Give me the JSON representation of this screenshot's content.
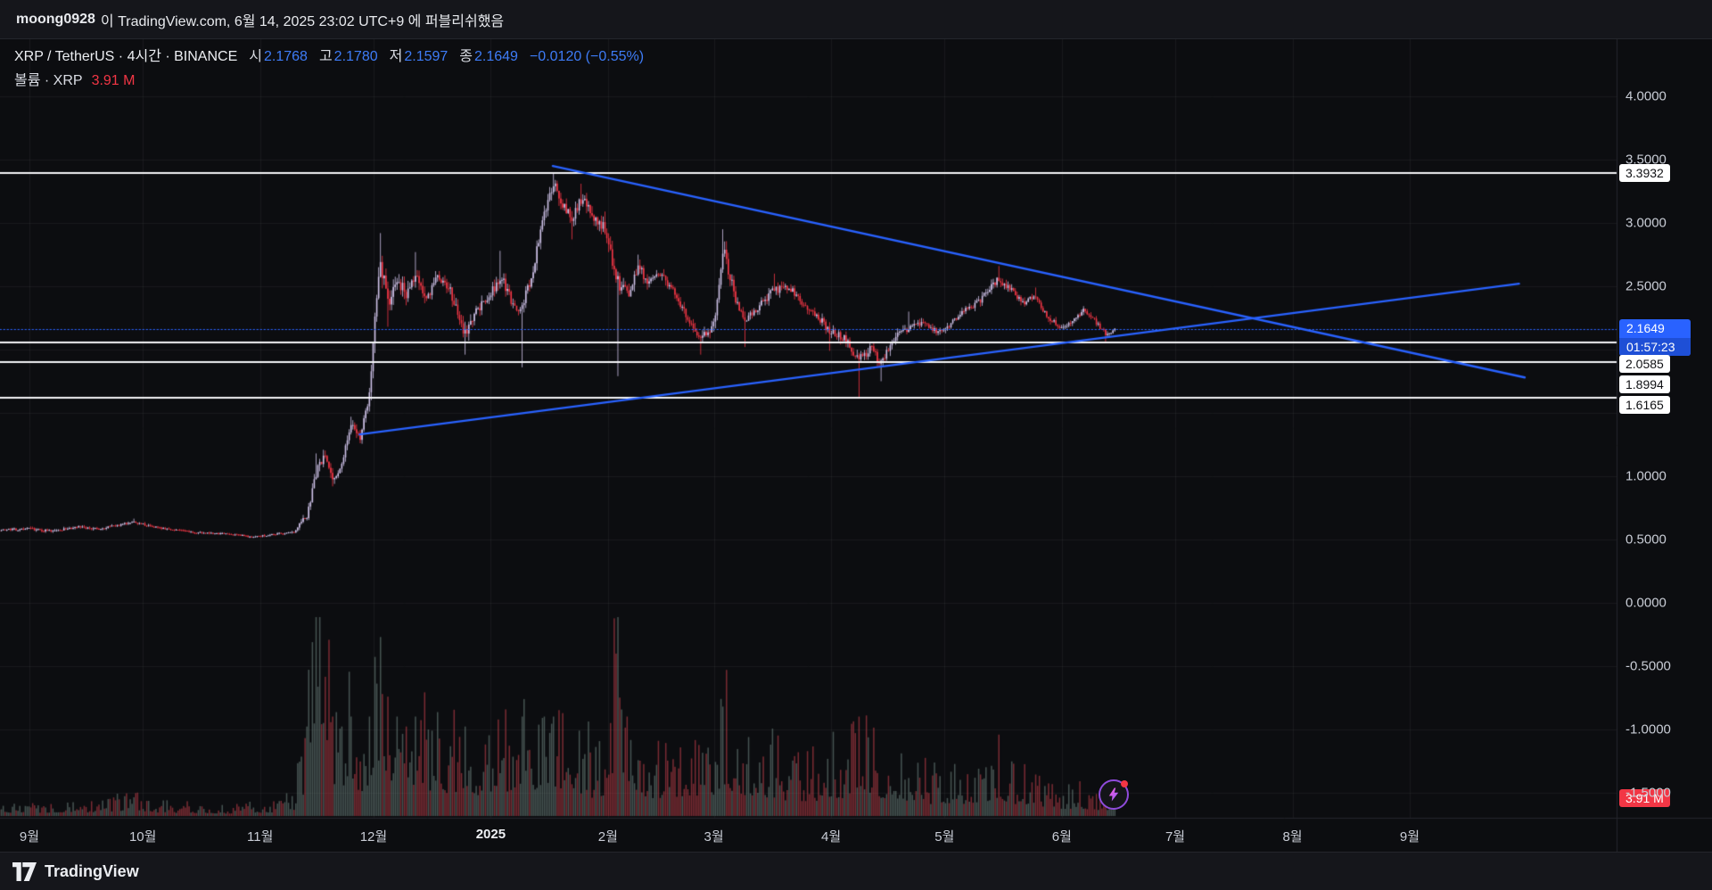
{
  "header": {
    "publisher": "moong0928",
    "publish_text": "이 TradingView.com, 6월 14, 2025 23:02 UTC+9 에 퍼블리쉬했음"
  },
  "legend": {
    "title": "XRP / TetherUS · 4시간 · BINANCE",
    "ohlc": [
      {
        "k": "시",
        "v": "2.1768"
      },
      {
        "k": "고",
        "v": "2.1780"
      },
      {
        "k": "저",
        "v": "2.1597"
      },
      {
        "k": "종",
        "v": "2.1649"
      }
    ],
    "change": "−0.0120 (−0.55%)",
    "volume_label": "볼륨 · XRP",
    "volume_value": "3.91 M"
  },
  "footer": {
    "brand": "TradingView"
  },
  "icons": {
    "marker": "lightning-bolt",
    "logo": "tradingview-logo"
  },
  "colors": {
    "accent_blue": "#2962ff",
    "value_blue": "#3e7cf7",
    "down_red": "#f23645",
    "candle_up": "#cfc2e9",
    "candle_down": "#f23645",
    "vol_up": "rgba(110,132,126,0.6)",
    "vol_down": "rgba(214,70,80,0.55)",
    "level_white": "#f5f6f8",
    "grid": "rgba(250,250,255,0.05)",
    "axis_border": "#24262c"
  },
  "chart_data": {
    "type": "candlestick",
    "title": "XRP / TetherUS 4h BINANCE",
    "interval": "4시간",
    "y_axis": {
      "ticks": [
        {
          "label": "4.0000",
          "value": 4.0
        },
        {
          "label": "3.5000",
          "value": 3.5
        },
        {
          "label": "3.0000",
          "value": 3.0
        },
        {
          "label": "2.5000",
          "value": 2.5
        },
        {
          "label": "1.0000",
          "value": 1.0
        },
        {
          "label": "0.5000",
          "value": 0.5
        },
        {
          "label": "0.0000",
          "value": 0.0
        },
        {
          "label": "-0.5000",
          "value": -0.5
        },
        {
          "label": "-1.0000",
          "value": -1.0
        },
        {
          "label": "-1.5000",
          "value": -1.5
        }
      ]
    },
    "x_axis": {
      "months": [
        {
          "label": "9월",
          "d": 0
        },
        {
          "label": "10월",
          "d": 30
        },
        {
          "label": "11월",
          "d": 61
        },
        {
          "label": "12월",
          "d": 91
        },
        {
          "label": "2025",
          "d": 122,
          "year": true
        },
        {
          "label": "2월",
          "d": 153
        },
        {
          "label": "3월",
          "d": 181
        },
        {
          "label": "4월",
          "d": 212
        },
        {
          "label": "5월",
          "d": 242
        },
        {
          "label": "6월",
          "d": 273
        },
        {
          "label": "7월",
          "d": 303
        },
        {
          "label": "8월",
          "d": 334
        },
        {
          "label": "9월",
          "d": 365
        }
      ]
    },
    "price_levels": [
      {
        "label": "3.3932",
        "value": 3.3932
      },
      {
        "label": "2.0585",
        "value": 2.0585
      },
      {
        "label": "1.8994",
        "value": 1.8994
      },
      {
        "label": "1.6165",
        "value": 1.6165
      }
    ],
    "current_price": {
      "label": "2.1649",
      "value": 2.1649,
      "countdown": "01:57:23"
    },
    "volume_badge": "3.91 M",
    "ohlc_now": {
      "open": 2.1768,
      "high": 2.178,
      "low": 2.1597,
      "close": 2.1649,
      "change": -0.012,
      "change_pct": -0.55
    },
    "trendlines": [
      {
        "from": {
          "m": 4.55,
          "price": 3.45
        },
        "to": {
          "m": 13.0,
          "price": 1.78
        }
      },
      {
        "from": {
          "m": 2.87,
          "price": 1.33
        },
        "to": {
          "m": 12.95,
          "price": 2.52
        }
      }
    ],
    "keypoints": [
      {
        "m": -0.26,
        "c": 0.575,
        "a": 0.015,
        "v": 0.05
      },
      {
        "m": 0.0,
        "c": 0.585,
        "a": 0.015,
        "v": 0.06
      },
      {
        "m": 0.2,
        "c": 0.565,
        "a": 0.015,
        "v": 0.05
      },
      {
        "m": 0.4,
        "c": 0.6,
        "a": 0.016,
        "v": 0.07
      },
      {
        "m": 0.6,
        "c": 0.58,
        "a": 0.015,
        "v": 0.05
      },
      {
        "m": 0.78,
        "c": 0.615,
        "a": 0.016,
        "v": 0.08
      },
      {
        "m": 0.9,
        "c": 0.645,
        "h": 0.665,
        "a": 0.016,
        "v": 0.1
      },
      {
        "m": 1.05,
        "c": 0.605,
        "a": 0.015,
        "v": 0.06
      },
      {
        "m": 1.25,
        "c": 0.58,
        "a": 0.013,
        "v": 0.05
      },
      {
        "m": 1.45,
        "c": 0.555,
        "a": 0.012,
        "v": 0.05
      },
      {
        "m": 1.7,
        "c": 0.545,
        "a": 0.011,
        "v": 0.04
      },
      {
        "m": 1.95,
        "c": 0.52,
        "a": 0.011,
        "v": 0.05
      },
      {
        "m": 2.15,
        "c": 0.545,
        "a": 0.012,
        "v": 0.06
      },
      {
        "m": 2.3,
        "c": 0.555,
        "a": 0.014,
        "v": 0.1
      },
      {
        "m": 2.42,
        "c": 0.7,
        "a": 0.05,
        "v": 0.45
      },
      {
        "m": 2.5,
        "c": 1.05,
        "h": 1.18,
        "a": 0.07,
        "v": 1.0
      },
      {
        "m": 2.57,
        "c": 1.15,
        "a": 0.065,
        "v": 0.7
      },
      {
        "m": 2.64,
        "c": 0.97,
        "l": 0.92,
        "a": 0.055,
        "v": 0.5
      },
      {
        "m": 2.72,
        "c": 1.12,
        "a": 0.055,
        "v": 0.45
      },
      {
        "m": 2.8,
        "c": 1.4,
        "h": 1.47,
        "a": 0.055,
        "v": 0.5
      },
      {
        "m": 2.88,
        "c": 1.3,
        "l": 1.26,
        "a": 0.05,
        "v": 0.4
      },
      {
        "m": 2.95,
        "c": 1.62,
        "a": 0.07,
        "v": 0.5
      },
      {
        "m": 3.0,
        "c": 2.18,
        "a": 0.1,
        "v": 0.8
      },
      {
        "m": 3.05,
        "c": 2.72,
        "h": 2.92,
        "a": 0.11,
        "v": 0.9
      },
      {
        "m": 3.12,
        "c": 2.33,
        "l": 2.18,
        "a": 0.09,
        "v": 0.6
      },
      {
        "m": 3.2,
        "c": 2.55,
        "a": 0.085,
        "v": 0.5
      },
      {
        "m": 3.28,
        "c": 2.43,
        "a": 0.08,
        "v": 0.45
      },
      {
        "m": 3.36,
        "c": 2.62,
        "h": 2.77,
        "a": 0.08,
        "v": 0.5
      },
      {
        "m": 3.45,
        "c": 2.38,
        "a": 0.075,
        "v": 0.4
      },
      {
        "m": 3.55,
        "c": 2.58,
        "a": 0.07,
        "v": 0.4
      },
      {
        "m": 3.66,
        "c": 2.46,
        "a": 0.065,
        "v": 0.35
      },
      {
        "m": 3.78,
        "c": 2.12,
        "l": 1.96,
        "a": 0.075,
        "v": 0.45
      },
      {
        "m": 3.9,
        "c": 2.32,
        "a": 0.065,
        "v": 0.35
      },
      {
        "m": 4.0,
        "c": 2.43,
        "a": 0.065,
        "v": 0.35
      },
      {
        "m": 4.1,
        "c": 2.58,
        "h": 2.78,
        "a": 0.075,
        "v": 0.4
      },
      {
        "m": 4.2,
        "c": 2.36,
        "a": 0.065,
        "v": 0.35
      },
      {
        "m": 4.28,
        "c": 2.31,
        "l": 1.86,
        "a": 0.085,
        "v": 0.5
      },
      {
        "m": 4.38,
        "c": 2.64,
        "a": 0.075,
        "v": 0.4
      },
      {
        "m": 4.47,
        "c": 3.08,
        "a": 0.085,
        "v": 0.5
      },
      {
        "m": 4.56,
        "c": 3.33,
        "h": 3.3932,
        "a": 0.08,
        "v": 0.5
      },
      {
        "m": 4.64,
        "c": 3.13,
        "a": 0.075,
        "v": 0.4
      },
      {
        "m": 4.72,
        "c": 3.03,
        "l": 2.87,
        "a": 0.07,
        "v": 0.35
      },
      {
        "m": 4.8,
        "c": 3.19,
        "h": 3.31,
        "a": 0.07,
        "v": 0.35
      },
      {
        "m": 4.9,
        "c": 3.06,
        "a": 0.07,
        "v": 0.3
      },
      {
        "m": 5.0,
        "c": 2.96,
        "h": 3.09,
        "a": 0.075,
        "v": 0.35
      },
      {
        "m": 5.12,
        "c": 2.52,
        "l": 1.79,
        "a": 0.11,
        "v": 1.0
      },
      {
        "m": 5.2,
        "c": 2.43,
        "a": 0.075,
        "v": 0.5
      },
      {
        "m": 5.29,
        "c": 2.66,
        "h": 2.75,
        "a": 0.065,
        "v": 0.4
      },
      {
        "m": 5.38,
        "c": 2.53,
        "a": 0.06,
        "v": 0.3
      },
      {
        "m": 5.48,
        "c": 2.61,
        "a": 0.055,
        "v": 0.3
      },
      {
        "m": 5.6,
        "c": 2.45,
        "a": 0.055,
        "v": 0.3
      },
      {
        "m": 5.72,
        "c": 2.26,
        "a": 0.055,
        "v": 0.3
      },
      {
        "m": 5.84,
        "c": 2.08,
        "l": 1.96,
        "a": 0.06,
        "v": 0.35
      },
      {
        "m": 5.95,
        "c": 2.19,
        "a": 0.06,
        "v": 0.3
      },
      {
        "m": 6.03,
        "c": 2.82,
        "h": 2.95,
        "a": 0.095,
        "v": 0.55
      },
      {
        "m": 6.12,
        "c": 2.46,
        "a": 0.08,
        "v": 0.4
      },
      {
        "m": 6.22,
        "c": 2.21,
        "l": 2.02,
        "a": 0.065,
        "v": 0.35
      },
      {
        "m": 6.35,
        "c": 2.36,
        "a": 0.055,
        "v": 0.3
      },
      {
        "m": 6.48,
        "c": 2.47,
        "h": 2.6,
        "a": 0.055,
        "v": 0.3
      },
      {
        "m": 6.6,
        "c": 2.5,
        "a": 0.05,
        "v": 0.25
      },
      {
        "m": 6.72,
        "c": 2.37,
        "a": 0.05,
        "v": 0.25
      },
      {
        "m": 6.85,
        "c": 2.27,
        "a": 0.045,
        "v": 0.25
      },
      {
        "m": 6.95,
        "c": 2.15,
        "l": 1.99,
        "a": 0.055,
        "v": 0.3
      },
      {
        "m": 7.08,
        "c": 2.09,
        "a": 0.05,
        "v": 0.3
      },
      {
        "m": 7.22,
        "c": 1.92,
        "l": 1.6165,
        "a": 0.085,
        "v": 0.5
      },
      {
        "m": 7.32,
        "c": 2.01,
        "a": 0.055,
        "v": 0.35
      },
      {
        "m": 7.4,
        "c": 1.89,
        "l": 1.75,
        "a": 0.055,
        "v": 0.3
      },
      {
        "m": 7.52,
        "c": 2.09,
        "a": 0.05,
        "v": 0.25
      },
      {
        "m": 7.64,
        "c": 2.17,
        "h": 2.3,
        "a": 0.045,
        "v": 0.25
      },
      {
        "m": 7.76,
        "c": 2.21,
        "a": 0.04,
        "v": 0.2
      },
      {
        "m": 7.9,
        "c": 2.13,
        "a": 0.04,
        "v": 0.2
      },
      {
        "m": 8.02,
        "c": 2.21,
        "a": 0.04,
        "v": 0.2
      },
      {
        "m": 8.14,
        "c": 2.31,
        "a": 0.04,
        "v": 0.2
      },
      {
        "m": 8.26,
        "c": 2.38,
        "a": 0.04,
        "v": 0.2
      },
      {
        "m": 8.42,
        "c": 2.56,
        "h": 2.66,
        "a": 0.05,
        "v": 0.3
      },
      {
        "m": 8.54,
        "c": 2.47,
        "a": 0.04,
        "v": 0.2
      },
      {
        "m": 8.64,
        "c": 2.37,
        "a": 0.04,
        "v": 0.2
      },
      {
        "m": 8.74,
        "c": 2.43,
        "h": 2.49,
        "a": 0.04,
        "v": 0.18
      },
      {
        "m": 8.84,
        "c": 2.27,
        "a": 0.038,
        "v": 0.15
      },
      {
        "m": 8.96,
        "c": 2.17,
        "a": 0.035,
        "v": 0.12
      },
      {
        "m": 9.06,
        "c": 2.23,
        "a": 0.035,
        "v": 0.12
      },
      {
        "m": 9.16,
        "c": 2.31,
        "a": 0.033,
        "v": 0.12
      },
      {
        "m": 9.26,
        "c": 2.23,
        "a": 0.03,
        "v": 0.1
      },
      {
        "m": 9.36,
        "c": 2.12,
        "l": 2.06,
        "a": 0.028,
        "v": 0.1
      },
      {
        "m": 9.45,
        "c": 2.1649,
        "a": 0.022,
        "v": 0.1
      }
    ]
  }
}
